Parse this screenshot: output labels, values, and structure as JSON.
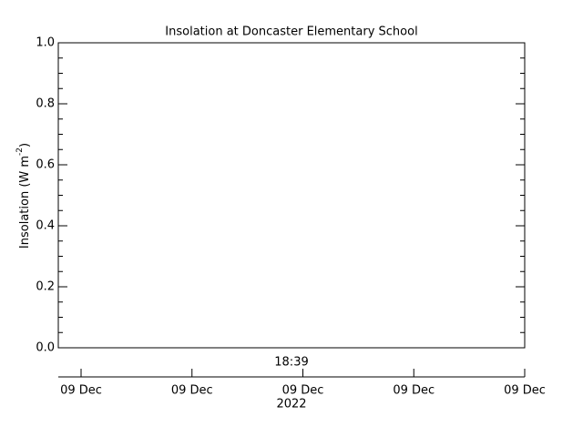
{
  "chart_data": {
    "type": "line",
    "title": "Insolation at Doncaster Elementary School",
    "ylabel": {
      "text": "Insolation (W m",
      "superscript": "-2",
      "close": ")"
    },
    "ylim": [
      0,
      1
    ],
    "yticks": [
      {
        "value": 0,
        "label": "0.0"
      },
      0.2,
      0.4,
      0.6,
      0.8,
      {
        "value": 1,
        "label": "1.0"
      }
    ],
    "x_tick_labels": [
      "09 Dec",
      "09 Dec",
      "09 Dec",
      "09 Dec",
      "09 Dec"
    ],
    "x_time_label": "18:39",
    "x_year_label": "2022"
  }
}
